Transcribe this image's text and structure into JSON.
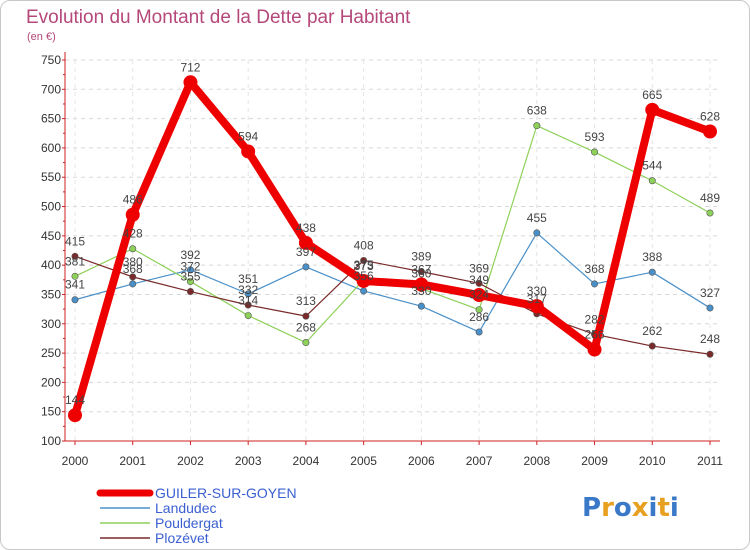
{
  "chart_data": {
    "type": "line",
    "title": "Evolution du Montant de la Dette par Habitant",
    "subtitle": "(en €)",
    "xlabel": "",
    "ylabel": "",
    "ylim": [
      100,
      750
    ],
    "yticks": [
      100,
      150,
      200,
      250,
      300,
      350,
      400,
      450,
      500,
      550,
      600,
      650,
      700,
      750
    ],
    "x": [
      "2000",
      "2001",
      "2002",
      "2003",
      "2004",
      "2005",
      "2006",
      "2007",
      "2008",
      "2009",
      "2010",
      "2011"
    ],
    "grid": "horizontal dashed",
    "legend_position": "bottom-left",
    "series": [
      {
        "name": "Landudec",
        "color": "#4a90c8",
        "emphasis": false,
        "values": [
          341,
          368,
          392,
          351,
          397,
          356,
          330,
          286,
          455,
          368,
          388,
          327
        ],
        "labels": [
          "341",
          "368",
          "392",
          "351",
          "397",
          "356",
          "330",
          "286",
          "455",
          "368",
          "388",
          "327"
        ]
      },
      {
        "name": "Pouldergat",
        "color": "#8ed15a",
        "emphasis": false,
        "values": [
          381,
          428,
          372,
          314,
          268,
          375,
          360,
          324,
          638,
          593,
          544,
          489
        ],
        "labels": [
          "381",
          "428",
          "372",
          "314",
          "268",
          "375",
          "360",
          "324",
          "638",
          "593",
          "544",
          "489"
        ]
      },
      {
        "name": "Plozévet",
        "color": "#7a2a2a",
        "emphasis": false,
        "values": [
          415,
          380,
          355,
          332,
          313,
          408,
          389,
          369,
          317,
          282,
          262,
          248
        ],
        "labels": [
          "415",
          "380",
          "355",
          "332",
          "313",
          "408",
          "389",
          "369",
          "317",
          "282",
          "262",
          "248"
        ]
      },
      {
        "name": "GUILER-SUR-GOYEN",
        "color": "#ee0000",
        "emphasis": true,
        "values": [
          144,
          486,
          712,
          594,
          438,
          373,
          367,
          349,
          330,
          256,
          665,
          628
        ],
        "labels": [
          "144",
          "486",
          "712",
          "594",
          "438",
          "373",
          "367",
          "349",
          "330",
          "256",
          "665",
          "628"
        ]
      }
    ],
    "legend_order": [
      "GUILER-SUR-GOYEN",
      "Landudec",
      "Pouldergat",
      "Plozévet"
    ]
  },
  "branding": {
    "logo_text": "Proxiti",
    "logo_colors": [
      "#3a78c8",
      "#e8a020",
      "#3a78c8",
      "#e8a020",
      "#3a78c8",
      "#e8a020",
      "#3a78c8"
    ]
  }
}
